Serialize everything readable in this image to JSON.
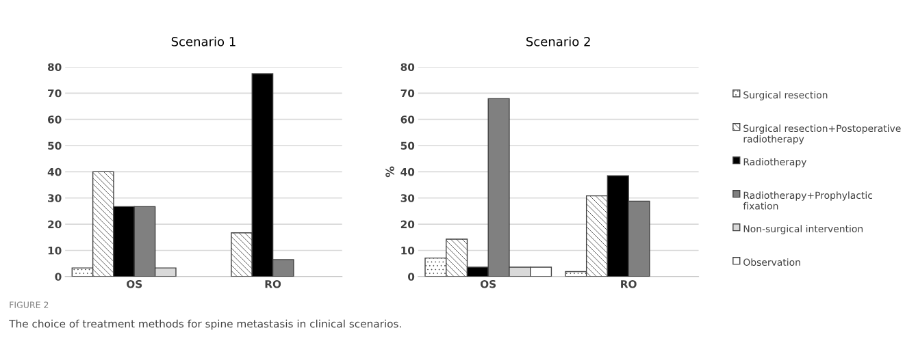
{
  "chart_data": [
    {
      "type": "bar",
      "title": "Scenario 1",
      "categories": [
        "OS",
        "RO"
      ],
      "ylim": [
        0,
        80
      ],
      "yticks": [
        0,
        10,
        20,
        30,
        40,
        50,
        60,
        70,
        80
      ],
      "grid": "y",
      "legend": false,
      "series": [
        {
          "color": "#404040",
          "values": [
            3.3,
            0
          ]
        },
        {
          "color": "#404040",
          "values": [
            40,
            16.7
          ]
        },
        {
          "color": "#000000",
          "values": [
            26.7,
            77.4
          ]
        },
        {
          "color": "#808080",
          "values": [
            26.7,
            6.5
          ]
        },
        {
          "color": "#d9d9d9",
          "values": [
            3.3,
            0
          ]
        },
        {
          "color": "#ffffff",
          "values": [
            0,
            0
          ]
        }
      ],
      "annotations": [
        "FIGURE 2",
        "The choice of treatment methods for spine metastasis in clinical scenarios."
      ]
    },
    {
      "type": "bar",
      "title": "Scenario 2",
      "ylabel": "%",
      "categories": [
        "OS",
        "RO"
      ],
      "ylim": [
        0,
        80
      ],
      "yticks": [
        0,
        10,
        20,
        30,
        40,
        50,
        60,
        70,
        80
      ],
      "grid": "y",
      "legend": "right",
      "series": [
        {
          "name": "Surgical resection",
          "color": "#404040",
          "values": [
            7.1,
            1.9
          ]
        },
        {
          "name": "Surgical resection+Postoperative radiotherapy",
          "color": "#404040",
          "values": [
            14.3,
            30.8
          ]
        },
        {
          "name": "Radiotherapy",
          "color": "#000000",
          "values": [
            3.6,
            38.5
          ]
        },
        {
          "name": "Radiotherapy+Prophylactic fixation",
          "color": "#808080",
          "values": [
            67.9,
            28.8
          ]
        },
        {
          "name": "Non-surgical intervention",
          "color": "#d9d9d9",
          "values": [
            3.6,
            0
          ]
        },
        {
          "name": "Observation",
          "color": "#ffffff",
          "values": [
            3.6,
            0
          ]
        }
      ]
    }
  ]
}
